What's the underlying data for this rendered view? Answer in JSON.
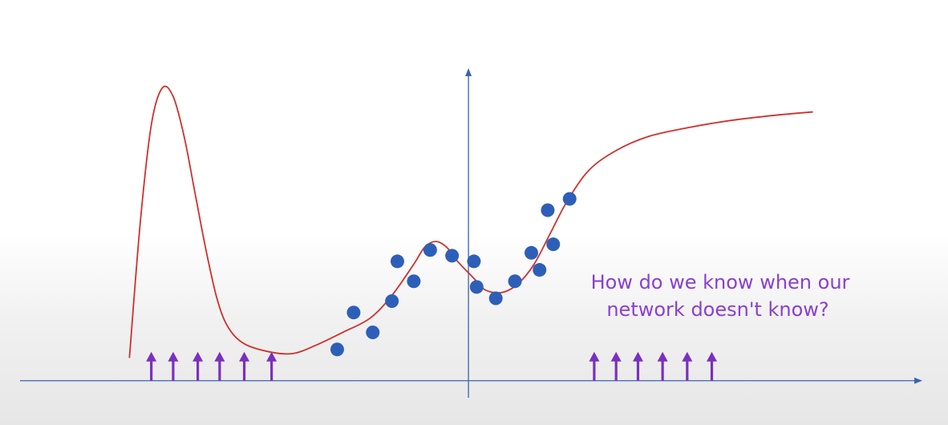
{
  "colors": {
    "curve": "#d0302c",
    "points": "#2e5fb8",
    "axis": "#3a63b0",
    "arrows": "#7b2fbf",
    "caption": "#8a3fcf"
  },
  "caption": {
    "line1": "How do we know when our",
    "line2": "network doesn't know?"
  },
  "chart_data": {
    "type": "scatter",
    "title": "",
    "xlabel": "",
    "ylabel": "",
    "xlim": [
      -8.2,
      8.3
    ],
    "ylim": [
      -0.3,
      5.5
    ],
    "grid": false,
    "points": [
      {
        "x": -2.4,
        "y": 0.55
      },
      {
        "x": -2.1,
        "y": 1.2
      },
      {
        "x": -1.75,
        "y": 0.85
      },
      {
        "x": -1.4,
        "y": 1.4
      },
      {
        "x": -1.3,
        "y": 2.1
      },
      {
        "x": -1.0,
        "y": 1.75
      },
      {
        "x": -0.7,
        "y": 2.3
      },
      {
        "x": -0.3,
        "y": 2.2
      },
      {
        "x": 0.1,
        "y": 2.1
      },
      {
        "x": 0.15,
        "y": 1.65
      },
      {
        "x": 0.5,
        "y": 1.45
      },
      {
        "x": 0.85,
        "y": 1.75
      },
      {
        "x": 1.15,
        "y": 2.25
      },
      {
        "x": 1.3,
        "y": 1.95
      },
      {
        "x": 1.45,
        "y": 3.0
      },
      {
        "x": 1.55,
        "y": 2.4
      },
      {
        "x": 1.85,
        "y": 3.2
      }
    ],
    "curve": [
      {
        "x": -6.2,
        "y": 0.4
      },
      {
        "x": -6.0,
        "y": 2.8
      },
      {
        "x": -5.8,
        "y": 4.5
      },
      {
        "x": -5.6,
        "y": 5.15
      },
      {
        "x": -5.4,
        "y": 5.0
      },
      {
        "x": -5.2,
        "y": 4.3
      },
      {
        "x": -5.0,
        "y": 3.3
      },
      {
        "x": -4.8,
        "y": 2.3
      },
      {
        "x": -4.6,
        "y": 1.45
      },
      {
        "x": -4.4,
        "y": 0.95
      },
      {
        "x": -4.1,
        "y": 0.65
      },
      {
        "x": -3.6,
        "y": 0.5
      },
      {
        "x": -3.2,
        "y": 0.48
      },
      {
        "x": -2.8,
        "y": 0.62
      },
      {
        "x": -2.3,
        "y": 0.85
      },
      {
        "x": -1.8,
        "y": 1.1
      },
      {
        "x": -1.4,
        "y": 1.5
      },
      {
        "x": -1.0,
        "y": 2.05
      },
      {
        "x": -0.8,
        "y": 2.35
      },
      {
        "x": -0.6,
        "y": 2.45
      },
      {
        "x": -0.4,
        "y": 2.35
      },
      {
        "x": -0.2,
        "y": 2.1
      },
      {
        "x": 0.1,
        "y": 1.8
      },
      {
        "x": 0.3,
        "y": 1.6
      },
      {
        "x": 0.6,
        "y": 1.55
      },
      {
        "x": 0.9,
        "y": 1.7
      },
      {
        "x": 1.2,
        "y": 2.05
      },
      {
        "x": 1.5,
        "y": 2.6
      },
      {
        "x": 1.8,
        "y": 3.15
      },
      {
        "x": 2.2,
        "y": 3.7
      },
      {
        "x": 2.7,
        "y": 4.05
      },
      {
        "x": 3.3,
        "y": 4.3
      },
      {
        "x": 4.0,
        "y": 4.45
      },
      {
        "x": 4.8,
        "y": 4.58
      },
      {
        "x": 5.6,
        "y": 4.67
      },
      {
        "x": 6.3,
        "y": 4.73
      }
    ],
    "arrows_x": [
      -5.8,
      -5.4,
      -4.95,
      -4.55,
      -4.1,
      -3.6,
      2.3,
      2.7,
      3.1,
      3.55,
      4.0,
      4.45
    ]
  }
}
